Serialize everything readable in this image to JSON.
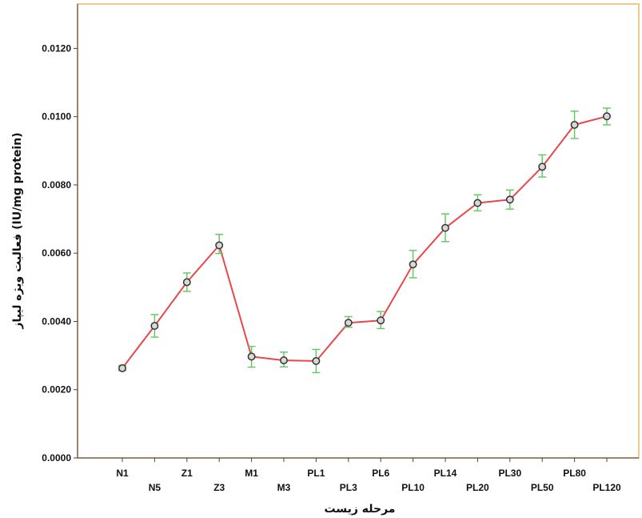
{
  "chart_data": {
    "type": "line",
    "title": "",
    "xlabel": "مرحله زیست",
    "ylabel": "فعالیت ویژه لیپاز (IU/mg protein)",
    "categories": [
      "N1",
      "N5",
      "Z1",
      "Z3",
      "M1",
      "M3",
      "PL1",
      "PL3",
      "PL6",
      "PL10",
      "PL14",
      "PL20",
      "PL30",
      "PL50",
      "PL80",
      "PL120"
    ],
    "series": [
      {
        "values": [
          0.00263,
          0.00387,
          0.00515,
          0.00623,
          0.00297,
          0.00286,
          0.00284,
          0.00396,
          0.00403,
          0.00567,
          0.00674,
          0.00747,
          0.00757,
          0.00853,
          0.00976,
          0.01001
        ],
        "error_low": [
          0.00256,
          0.00354,
          0.00488,
          0.00599,
          0.00266,
          0.00267,
          0.0025,
          0.00383,
          0.00379,
          0.00528,
          0.00634,
          0.00724,
          0.00729,
          0.00823,
          0.00936,
          0.00976
        ],
        "error_high": [
          0.00271,
          0.0042,
          0.00542,
          0.00655,
          0.00327,
          0.0031,
          0.00318,
          0.00414,
          0.00429,
          0.00608,
          0.00715,
          0.00771,
          0.00785,
          0.00888,
          0.01016,
          0.01025
        ]
      }
    ],
    "ylim": [
      0,
      0.0133
    ],
    "yticks": [
      0.0,
      0.002,
      0.004,
      0.006,
      0.008,
      0.01,
      0.012
    ],
    "ytick_labels": [
      "0.0000",
      "0.0020",
      "0.0040",
      "0.0060",
      "0.0080",
      "0.0100",
      "0.0120"
    ],
    "grid": false,
    "colors": {
      "line": "#e8474b",
      "error_bar": "#5cc75c",
      "marker_edge": "#333333",
      "frame": "#f0c98c",
      "axis": "#444444"
    }
  }
}
